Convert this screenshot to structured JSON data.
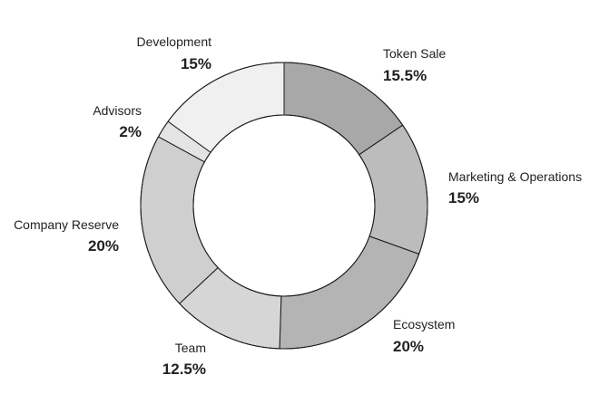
{
  "chart_data": {
    "type": "pie",
    "variant": "donut",
    "title": "",
    "categories": [
      "Token Sale",
      "Marketing & Operations",
      "Ecosystem",
      "Team",
      "Company Reserve",
      "Advisors",
      "Development"
    ],
    "values": [
      15.5,
      15,
      20,
      12.5,
      20,
      2,
      15
    ],
    "value_labels": [
      "15.5%",
      "15%",
      "20%",
      "12.5%",
      "20%",
      "2%",
      "15%"
    ],
    "unit": "%",
    "start_angle_deg": 0,
    "direction": "clockwise",
    "legend": "none",
    "colors": [
      "#a8a8a8",
      "#bcbcbc",
      "#b4b4b4",
      "#d6d6d6",
      "#cfcfcf",
      "#e4e4e4",
      "#f0f0f0"
    ]
  }
}
